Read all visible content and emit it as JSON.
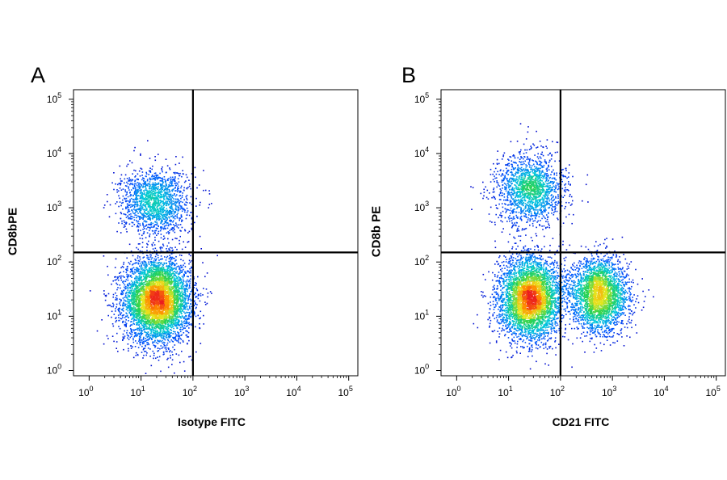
{
  "chart_data": [
    {
      "type": "scatter",
      "panel_label": "A",
      "xlabel": "Isotype FITC",
      "ylabel": "CD8bPE",
      "x_scale": "log",
      "y_scale": "log",
      "xlim": [
        0.5,
        150000
      ],
      "ylim": [
        0.8,
        150000
      ],
      "x_ticks": [
        1,
        10,
        100,
        1000,
        10000,
        100000
      ],
      "y_ticks": [
        1,
        10,
        100,
        1000,
        10000,
        100000
      ],
      "x_tick_labels": [
        {
          "base": "10",
          "exp": "0"
        },
        {
          "base": "10",
          "exp": "1"
        },
        {
          "base": "10",
          "exp": "2"
        },
        {
          "base": "10",
          "exp": "3"
        },
        {
          "base": "10",
          "exp": "4"
        },
        {
          "base": "10",
          "exp": "5"
        }
      ],
      "y_tick_labels": [
        {
          "base": "10",
          "exp": "0"
        },
        {
          "base": "10",
          "exp": "1"
        },
        {
          "base": "10",
          "exp": "2"
        },
        {
          "base": "10",
          "exp": "3"
        },
        {
          "base": "10",
          "exp": "4"
        },
        {
          "base": "10",
          "exp": "5"
        }
      ],
      "gate": {
        "x": 100,
        "y": 150
      },
      "populations": [
        {
          "name_hint": "CD8b-negative",
          "center": [
            20,
            20
          ],
          "spread_log": [
            0.32,
            0.38
          ],
          "count": 5200
        },
        {
          "name_hint": "CD8b-positive",
          "center": [
            18,
            1300
          ],
          "spread_log": [
            0.33,
            0.3
          ],
          "count": 1600
        }
      ],
      "grid": false,
      "plot_style": "density dot plot, color from blue (low) through green/yellow to red (high)"
    },
    {
      "type": "scatter",
      "panel_label": "B",
      "xlabel": "CD21 FITC",
      "ylabel": "CD8b PE",
      "x_scale": "log",
      "y_scale": "log",
      "xlim": [
        0.5,
        150000
      ],
      "ylim": [
        0.8,
        150000
      ],
      "x_ticks": [
        1,
        10,
        100,
        1000,
        10000,
        100000
      ],
      "y_ticks": [
        1,
        10,
        100,
        1000,
        10000,
        100000
      ],
      "x_tick_labels": [
        {
          "base": "10",
          "exp": "0"
        },
        {
          "base": "10",
          "exp": "1"
        },
        {
          "base": "10",
          "exp": "2"
        },
        {
          "base": "10",
          "exp": "3"
        },
        {
          "base": "10",
          "exp": "4"
        },
        {
          "base": "10",
          "exp": "5"
        }
      ],
      "y_tick_labels": [
        {
          "base": "10",
          "exp": "0"
        },
        {
          "base": "10",
          "exp": "1"
        },
        {
          "base": "10",
          "exp": "2"
        },
        {
          "base": "10",
          "exp": "3"
        },
        {
          "base": "10",
          "exp": "4"
        },
        {
          "base": "10",
          "exp": "5"
        }
      ],
      "gate": {
        "x": 100,
        "y": 150
      },
      "populations": [
        {
          "name_hint": "CD21-neg CD8b-neg",
          "center": [
            25,
            22
          ],
          "spread_log": [
            0.3,
            0.38
          ],
          "count": 4200
        },
        {
          "name_hint": "CD21-pos CD8b-neg",
          "center": [
            550,
            25
          ],
          "spread_log": [
            0.28,
            0.34
          ],
          "count": 2800
        },
        {
          "name_hint": "CD21-neg CD8b-pos",
          "center": [
            25,
            2200
          ],
          "spread_log": [
            0.33,
            0.32
          ],
          "count": 1700
        }
      ],
      "grid": false,
      "plot_style": "density dot plot, color from blue (low) through green/yellow to red (high)"
    }
  ]
}
